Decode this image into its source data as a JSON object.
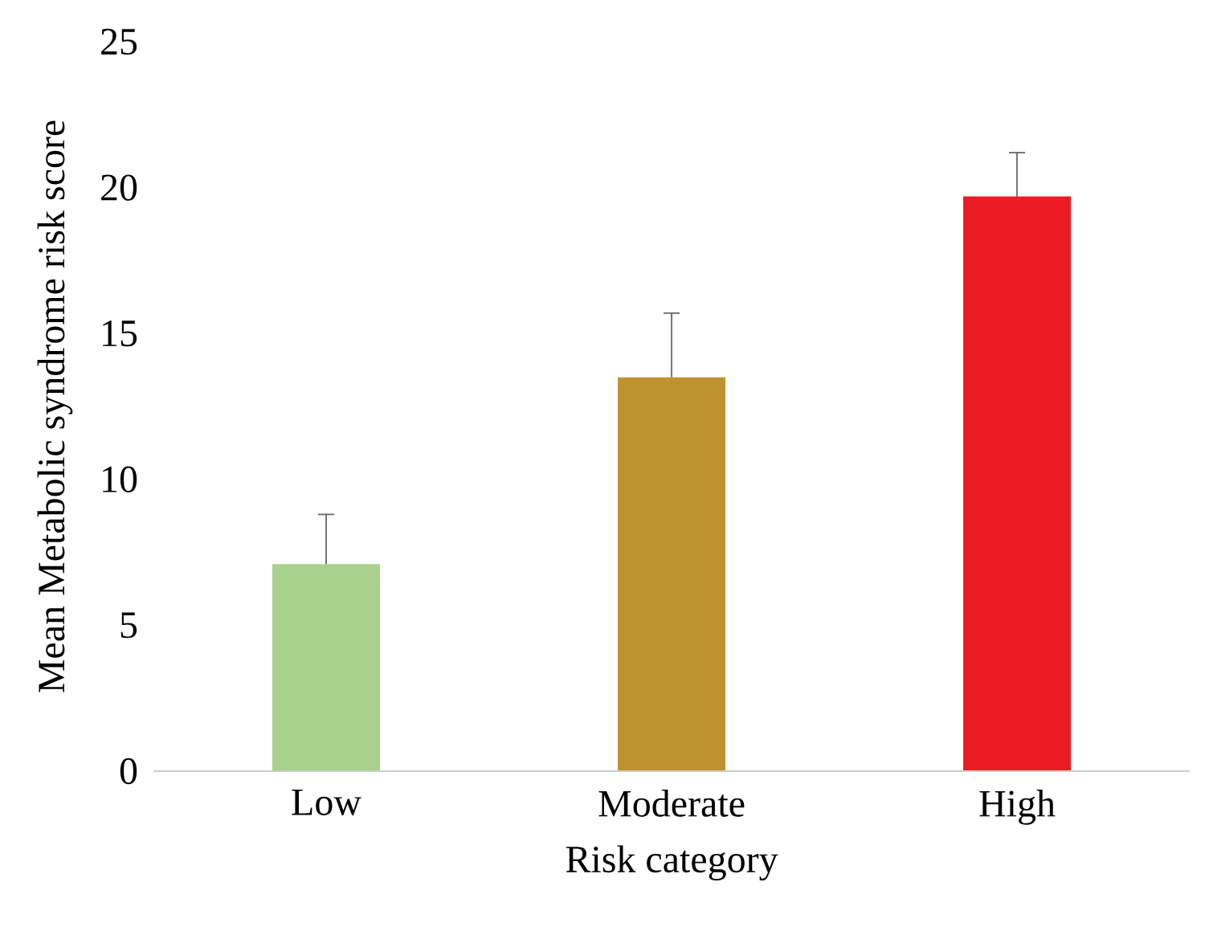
{
  "chart_data": {
    "type": "bar",
    "xlabel": "Risk category",
    "ylabel": "Mean Metabolic syndrome risk score",
    "categories": [
      "Low",
      "Moderate",
      "High"
    ],
    "values": [
      7.1,
      13.5,
      19.7
    ],
    "colors": [
      "#a9d18e",
      "#bf9230",
      "#ed1c24"
    ],
    "errors": [
      [
        7.1,
        8.8
      ],
      [
        13.5,
        15.7
      ],
      [
        19.7,
        21.2
      ]
    ],
    "ylim": [
      0,
      25
    ],
    "yticks": [
      0,
      5,
      10,
      15,
      20,
      25
    ],
    "grid": false
  }
}
